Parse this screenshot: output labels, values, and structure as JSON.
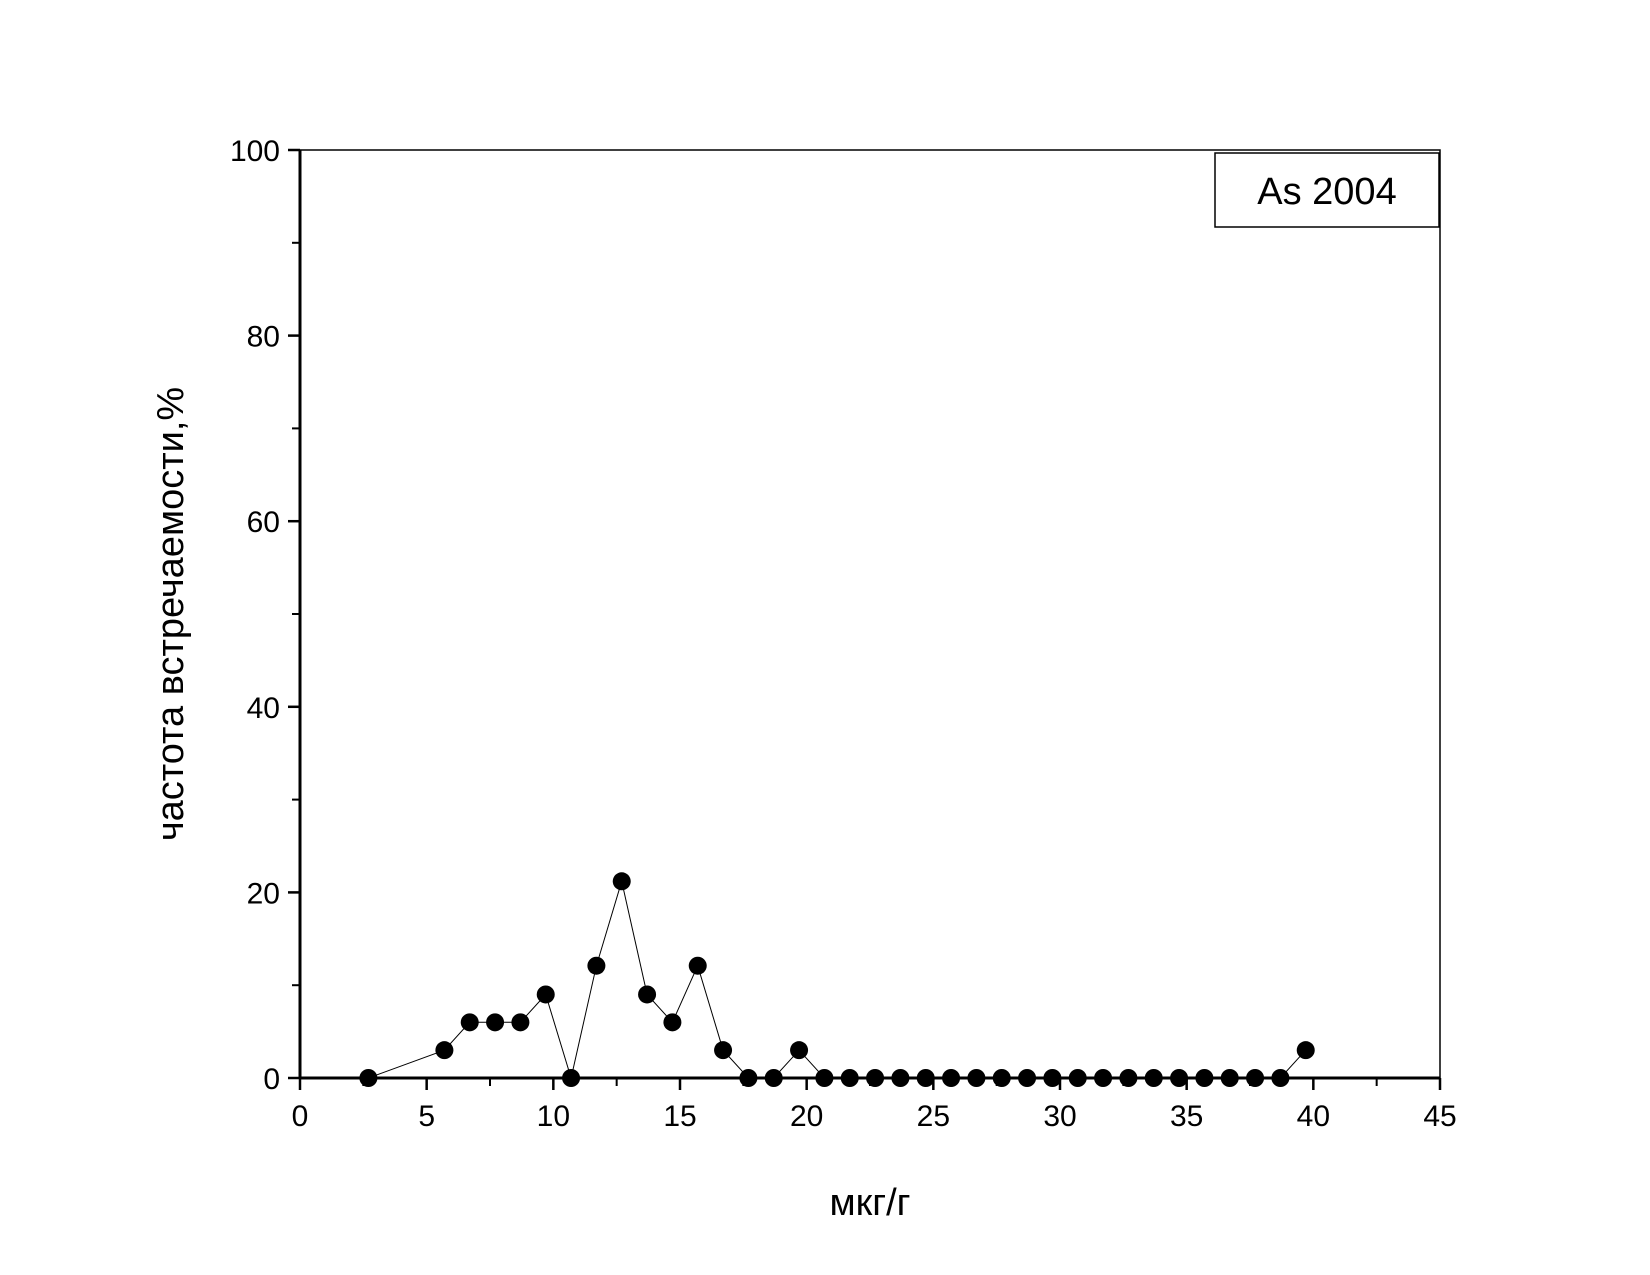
{
  "chart_data": {
    "type": "line",
    "title": "",
    "xlabel": "мкг/г",
    "ylabel": "частота встречаемости,%",
    "xlim": [
      0,
      45
    ],
    "ylim": [
      0,
      100
    ],
    "xticks": [
      0,
      5,
      10,
      15,
      20,
      25,
      30,
      35,
      40,
      45
    ],
    "yticks": [
      0,
      20,
      40,
      60,
      80,
      100
    ],
    "x_minor_step": 2.5,
    "y_minor_step": 10,
    "grid": false,
    "legend_position": "top-right",
    "series": [
      {
        "name": "As 2004",
        "marker": "filled-circle",
        "color": "#000000",
        "x": [
          2.7,
          5.7,
          6.7,
          7.7,
          8.7,
          9.7,
          10.7,
          11.7,
          12.7,
          13.7,
          14.7,
          15.7,
          16.7,
          17.7,
          18.7,
          19.7,
          20.7,
          21.7,
          22.7,
          23.7,
          24.7,
          25.7,
          26.7,
          27.7,
          28.7,
          29.7,
          30.7,
          31.7,
          32.7,
          33.7,
          34.7,
          35.7,
          36.7,
          37.7,
          38.7,
          39.7
        ],
        "values": [
          0,
          3,
          6,
          6,
          6,
          9,
          0,
          12.1,
          21.2,
          9,
          6,
          12.1,
          3,
          0,
          0,
          3,
          0,
          0,
          0,
          0,
          0,
          0,
          0,
          0,
          0,
          0,
          0,
          0,
          0,
          0,
          0,
          0,
          0,
          0,
          0,
          3
        ]
      }
    ]
  }
}
